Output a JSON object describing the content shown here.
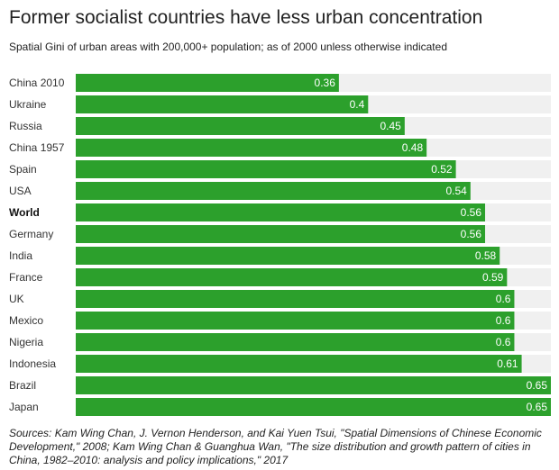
{
  "chart_data": {
    "type": "bar",
    "orientation": "horizontal",
    "title": "Former socialist countries have less urban concentration",
    "subtitle": "Spatial Gini of urban areas with 200,000+ population; as of 2000 unless otherwise indicated",
    "categories": [
      "China 2010",
      "Ukraine",
      "Russia",
      "China 1957",
      "Spain",
      "USA",
      "World",
      "Germany",
      "India",
      "France",
      "UK",
      "Mexico",
      "Nigeria",
      "Indonesia",
      "Brazil",
      "Japan"
    ],
    "values": [
      0.36,
      0.4,
      0.45,
      0.48,
      0.52,
      0.54,
      0.56,
      0.56,
      0.58,
      0.59,
      0.6,
      0.6,
      0.6,
      0.61,
      0.65,
      0.65
    ],
    "bold_categories": [
      "World"
    ],
    "xlim": [
      0,
      0.65
    ],
    "grid": false,
    "bar_color": "#2ca02c",
    "track_color": "#f0f0f0",
    "source": "Sources: Kam Wing Chan, J. Vernon Henderson, and Kai Yuen Tsui, \"Spatial Dimensions of Chinese Economic Development,\" 2008; Kam Wing Chan & Guanghua Wan, \"The size distribution and growth pattern of cities in China, 1982–2010: analysis and policy implications,\" 2017"
  }
}
